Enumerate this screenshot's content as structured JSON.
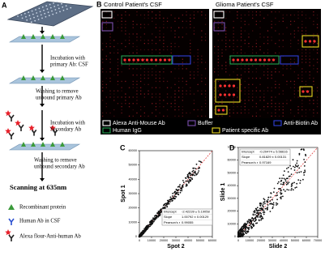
{
  "panel_a": {
    "label": "A",
    "steps": [
      [
        "Incubation with",
        "primary Ab: CSF"
      ],
      [
        "Washing to remove",
        "unbound primary Ab"
      ],
      [
        "Incubation with",
        "Secondary Ab"
      ],
      [
        "Washing to remove",
        "unbound secondary Ab"
      ]
    ],
    "scan": "Scanning at 635nm",
    "legend": [
      "Recombinant protein",
      "Human Ab in CSF",
      "Alexa flour-Anti-human Ab"
    ]
  },
  "panel_b": {
    "label": "B",
    "titles": [
      "Control Patient's CSF",
      "Glioma Patient's CSF"
    ],
    "legend": [
      {
        "label": "Alexa Anti-Mouse Ab",
        "color": "#ffffff"
      },
      {
        "label": "Buffer",
        "color": "#7b4fb0"
      },
      {
        "label": "Anti-Biotin Ab",
        "color": "#3040d8"
      },
      {
        "label": "Human IgG",
        "color": "#22a050"
      },
      {
        "label": "Patient specific Ab",
        "color": "#e8d820"
      }
    ]
  },
  "panel_c": {
    "label": "C",
    "x_label": "Spot 2",
    "y_label": "Spot 1",
    "xticks": [
      0,
      10000,
      20000,
      30000,
      40000,
      50000,
      60000
    ],
    "yticks": [
      0,
      10000,
      20000,
      30000,
      40000,
      50000,
      60000
    ],
    "stats": [
      [
        "Intercept",
        "-2.42239 ± 5.19058"
      ],
      [
        "Slope",
        "1.00792 ± 0.00129"
      ],
      [
        "Pearson's r",
        "0.99055"
      ]
    ]
  },
  "panel_d": {
    "label": "D",
    "x_label": "Slide 2",
    "y_label": "Slide 1",
    "xticks": [
      0,
      10000,
      20000,
      30000,
      40000,
      50000,
      60000,
      70000
    ],
    "yticks": [
      0,
      10000,
      20000,
      30000,
      40000,
      50000,
      60000,
      70000
    ],
    "stats": [
      [
        "Intercept",
        "-0.20474 ± 5.56616"
      ],
      [
        "Slope",
        "0.81829 ± 0.00131"
      ],
      [
        "Pearson's r",
        "0.97169"
      ]
    ]
  }
}
